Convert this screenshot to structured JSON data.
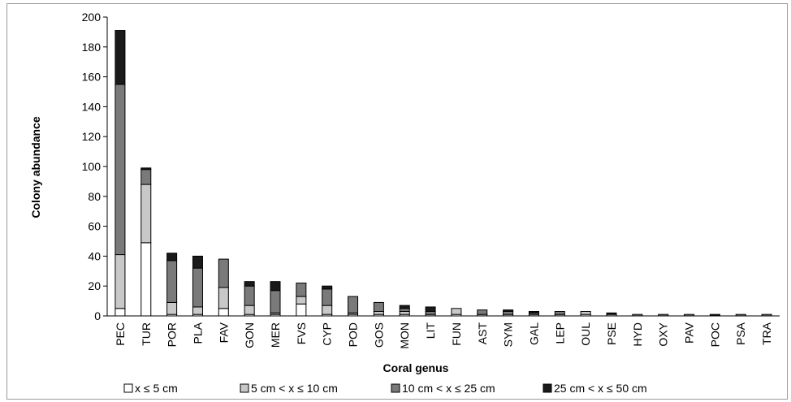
{
  "chart_data": {
    "type": "bar",
    "stacked": true,
    "title": "",
    "xlabel": "Coral genus",
    "ylabel": "Colony abundance",
    "ylim": [
      0,
      200
    ],
    "yticks": [
      0,
      20,
      40,
      60,
      80,
      100,
      120,
      140,
      160,
      180,
      200
    ],
    "grid": false,
    "legend_position": "bottom",
    "categories": [
      "PEC",
      "TUR",
      "POR",
      "PLA",
      "FAV",
      "GON",
      "MER",
      "FVS",
      "CYP",
      "POD",
      "GOS",
      "MON",
      "LIT",
      "FUN",
      "AST",
      "SYM",
      "GAL",
      "LEP",
      "OUL",
      "PSE",
      "HYD",
      "OXY",
      "PAV",
      "POC",
      "PSA",
      "TRA"
    ],
    "series": [
      {
        "name": "x ≤ 5 cm",
        "color": "#ffffff",
        "values": [
          5,
          49,
          1,
          1,
          5,
          1,
          1,
          8,
          1,
          1,
          1,
          1,
          0,
          1,
          0,
          0,
          0,
          0,
          1,
          0,
          0,
          0,
          0,
          0,
          0,
          0
        ]
      },
      {
        "name": "5 cm < x ≤ 10 cm",
        "color": "#c8c8c8",
        "values": [
          36,
          39,
          8,
          5,
          14,
          6,
          1,
          5,
          6,
          1,
          2,
          2,
          1,
          4,
          1,
          1,
          1,
          1,
          2,
          1,
          0,
          0,
          0,
          0,
          0,
          0
        ]
      },
      {
        "name": "10 cm < x ≤ 25 cm",
        "color": "#7a7a7a",
        "values": [
          114,
          10,
          28,
          26,
          19,
          13,
          15,
          9,
          11,
          11,
          6,
          2,
          2,
          0,
          3,
          2,
          1,
          2,
          0,
          0,
          1,
          1,
          1,
          0,
          1,
          1
        ]
      },
      {
        "name": "25 cm < x ≤ 50 cm",
        "color": "#1a1a1a",
        "values": [
          36,
          1,
          5,
          8,
          0,
          3,
          6,
          0,
          2,
          0,
          0,
          2,
          3,
          0,
          0,
          1,
          1,
          0,
          0,
          1,
          0,
          0,
          0,
          1,
          0,
          0
        ]
      }
    ]
  }
}
